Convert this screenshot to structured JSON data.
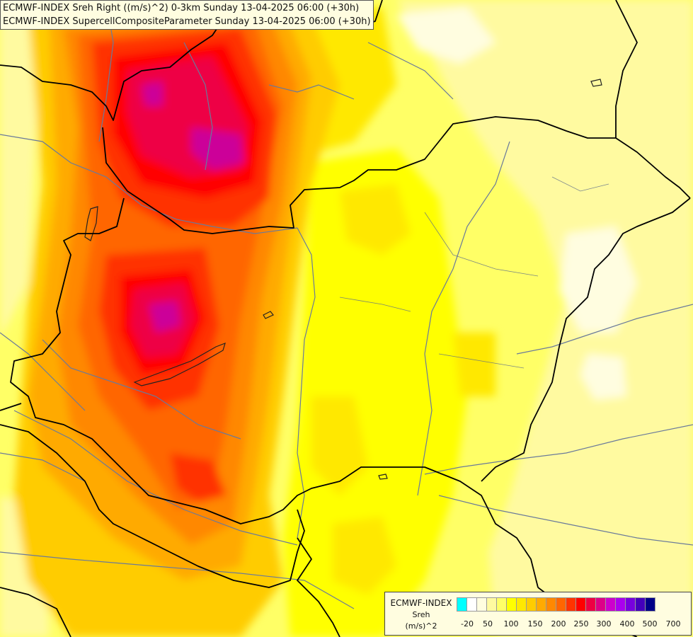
{
  "header": {
    "line1": "ECMWF-INDEX Sreh Right ((m/s)^2) 0-3km Sunday 13-04-2025 06:00 (+30h)",
    "line2": "ECMWF-INDEX SupercellCompositeParameter Sunday 13-04-2025 06:00 (+30h)"
  },
  "legend": {
    "name": "ECMWF-INDEX",
    "variable": "Sreh",
    "unit": "(m/s)^2",
    "colors": [
      "#00ffff",
      "#ffffff",
      "#fffde0",
      "#fffaa0",
      "#ffff66",
      "#ffff00",
      "#ffe800",
      "#ffcc00",
      "#ffaa00",
      "#ff8800",
      "#ff6600",
      "#ff3300",
      "#ff0000",
      "#ee0044",
      "#dd0088",
      "#cc00cc",
      "#aa00ee",
      "#7700dd",
      "#4400bb",
      "#000088"
    ],
    "ticks": [
      "-20",
      "50",
      "100",
      "150",
      "200",
      "250",
      "300",
      "400",
      "500",
      "700"
    ]
  },
  "map": {
    "palette": {
      "very_pale": "#fffde0",
      "pale": "#fffaa0",
      "light_yellow": "#ffff66",
      "yellow": "#ffff00",
      "gold": "#ffe800",
      "amber": "#ffcc00",
      "orange": "#ffaa00",
      "dark_orange": "#ff8800",
      "red_orange": "#ff6600",
      "red": "#ff3300",
      "deep_red": "#ff0000",
      "crimson": "#ee0044",
      "magenta": "#cc0099"
    },
    "border_color": "#000000",
    "river_color": "#6a7a9a"
  }
}
